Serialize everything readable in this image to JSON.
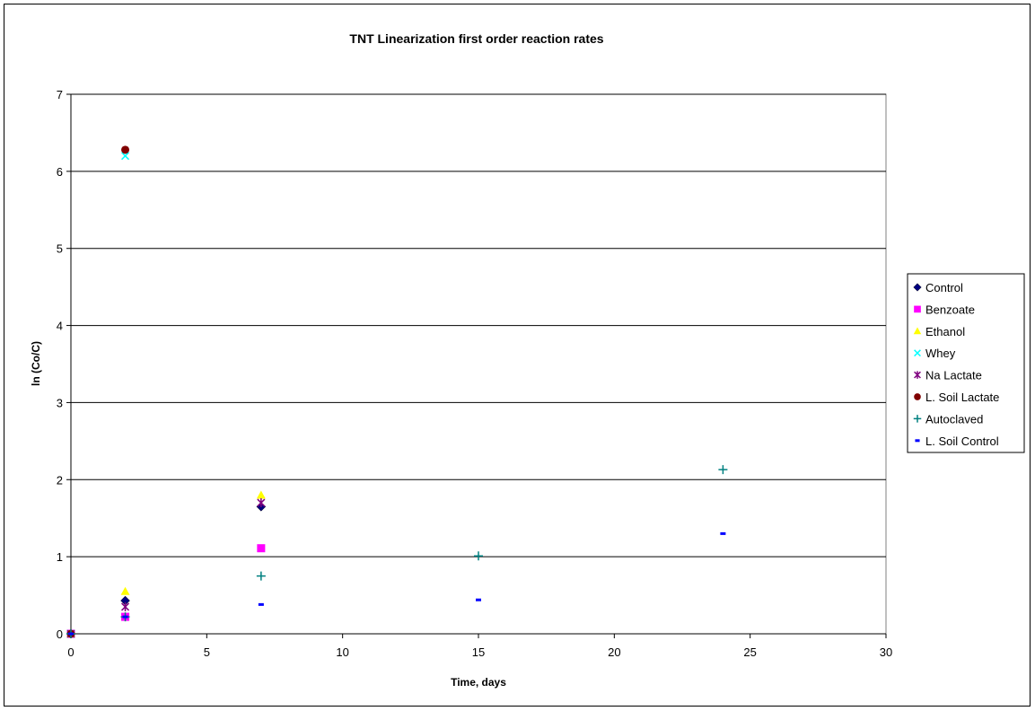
{
  "chart_data": {
    "type": "scatter",
    "title": "TNT Linearization first order reaction rates",
    "xlabel": "Time, days",
    "ylabel": "ln (Co/C)",
    "xlim": [
      0,
      30
    ],
    "ylim": [
      0,
      7
    ],
    "xticks": [
      "0",
      "5",
      "10",
      "15",
      "20",
      "25",
      "30"
    ],
    "yticks": [
      "0",
      "1",
      "2",
      "3",
      "4",
      "5",
      "6",
      "7"
    ],
    "grid": "horizontal",
    "legend_position": "right",
    "series": [
      {
        "name": "Control",
        "marker": "diamond",
        "color": "#000080",
        "points": [
          [
            0,
            0
          ],
          [
            2,
            0.43
          ],
          [
            7,
            1.65
          ]
        ]
      },
      {
        "name": "Benzoate",
        "marker": "square",
        "color": "#ff00ff",
        "points": [
          [
            0,
            0
          ],
          [
            2,
            0.22
          ],
          [
            7,
            1.11
          ]
        ]
      },
      {
        "name": "Ethanol",
        "marker": "triangle",
        "color": "#ffff00",
        "points": [
          [
            0,
            0
          ],
          [
            2,
            0.55
          ],
          [
            7,
            1.8
          ]
        ]
      },
      {
        "name": "Whey",
        "marker": "x",
        "color": "#00ffff",
        "points": [
          [
            0,
            0
          ],
          [
            2,
            6.2
          ]
        ]
      },
      {
        "name": "Na Lactate",
        "marker": "star",
        "color": "#800080",
        "points": [
          [
            0,
            0
          ],
          [
            2,
            0.35
          ],
          [
            7,
            1.7
          ]
        ]
      },
      {
        "name": "L. Soil Lactate",
        "marker": "circle",
        "color": "#800000",
        "points": [
          [
            0,
            0
          ],
          [
            2,
            6.28
          ]
        ]
      },
      {
        "name": "Autoclaved",
        "marker": "plus",
        "color": "#008080",
        "points": [
          [
            0,
            0
          ],
          [
            2,
            0.22
          ],
          [
            7,
            0.75
          ],
          [
            15,
            1.01
          ],
          [
            24,
            2.13
          ]
        ]
      },
      {
        "name": "L. Soil Control",
        "marker": "dash",
        "color": "#0000ff",
        "points": [
          [
            0,
            0
          ],
          [
            2,
            0.22
          ],
          [
            7,
            0.38
          ],
          [
            15,
            0.44
          ],
          [
            24,
            1.3
          ]
        ]
      }
    ]
  }
}
